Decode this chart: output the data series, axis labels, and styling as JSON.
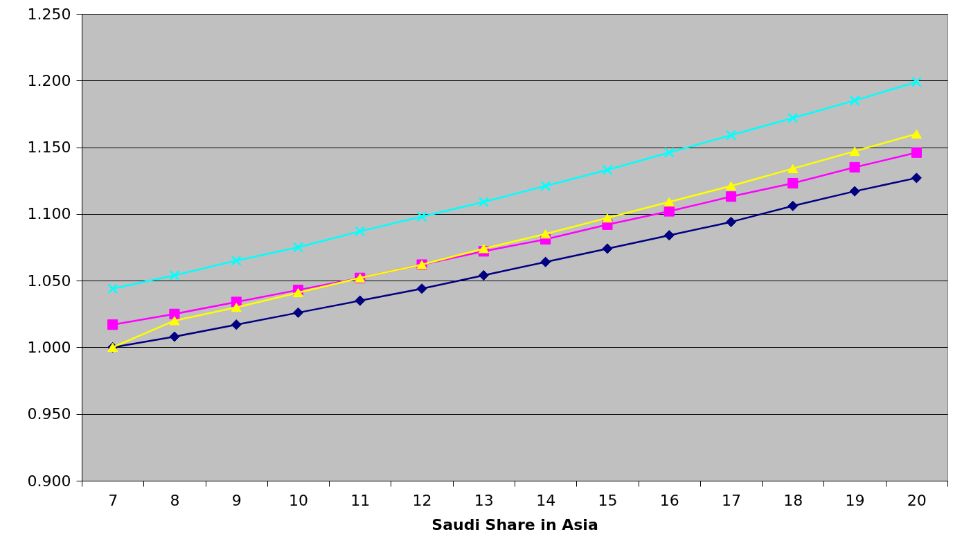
{
  "chart_data": {
    "type": "line",
    "xlabel": "Saudi Share in Asia",
    "categories": [
      "7",
      "8",
      "9",
      "10",
      "11",
      "12",
      "13",
      "14",
      "15",
      "16",
      "17",
      "18",
      "19",
      "20"
    ],
    "series": [
      {
        "color": "#000080",
        "marker": "diamond",
        "values": [
          1.0,
          1.008,
          1.017,
          1.026,
          1.035,
          1.044,
          1.054,
          1.064,
          1.074,
          1.084,
          1.094,
          1.106,
          1.117,
          1.127
        ]
      },
      {
        "color": "#ff00ff",
        "marker": "square",
        "values": [
          1.017,
          1.025,
          1.034,
          1.043,
          1.052,
          1.062,
          1.072,
          1.081,
          1.092,
          1.102,
          1.113,
          1.123,
          1.135,
          1.146
        ]
      },
      {
        "color": "#ffff00",
        "marker": "triangle",
        "values": [
          1.0,
          1.02,
          1.03,
          1.041,
          1.052,
          1.062,
          1.074,
          1.085,
          1.097,
          1.109,
          1.121,
          1.134,
          1.147,
          1.16
        ]
      },
      {
        "color": "#00ffff",
        "marker": "cross",
        "values": [
          1.044,
          1.054,
          1.065,
          1.075,
          1.087,
          1.098,
          1.109,
          1.121,
          1.133,
          1.146,
          1.159,
          1.172,
          1.185,
          1.199
        ]
      }
    ],
    "ylim": [
      0.9,
      1.25
    ],
    "yticks": [
      {
        "value": 0.9,
        "label": "0.900"
      },
      {
        "value": 0.95,
        "label": "0.950"
      },
      {
        "value": 1.0,
        "label": "1.000"
      },
      {
        "value": 1.05,
        "label": "1.050"
      },
      {
        "value": 1.1,
        "label": "1.100"
      },
      {
        "value": 1.15,
        "label": "1.150"
      },
      {
        "value": 1.2,
        "label": "1.200"
      },
      {
        "value": 1.25,
        "label": "1.250"
      }
    ],
    "grid": "y",
    "line_style": "solid"
  }
}
